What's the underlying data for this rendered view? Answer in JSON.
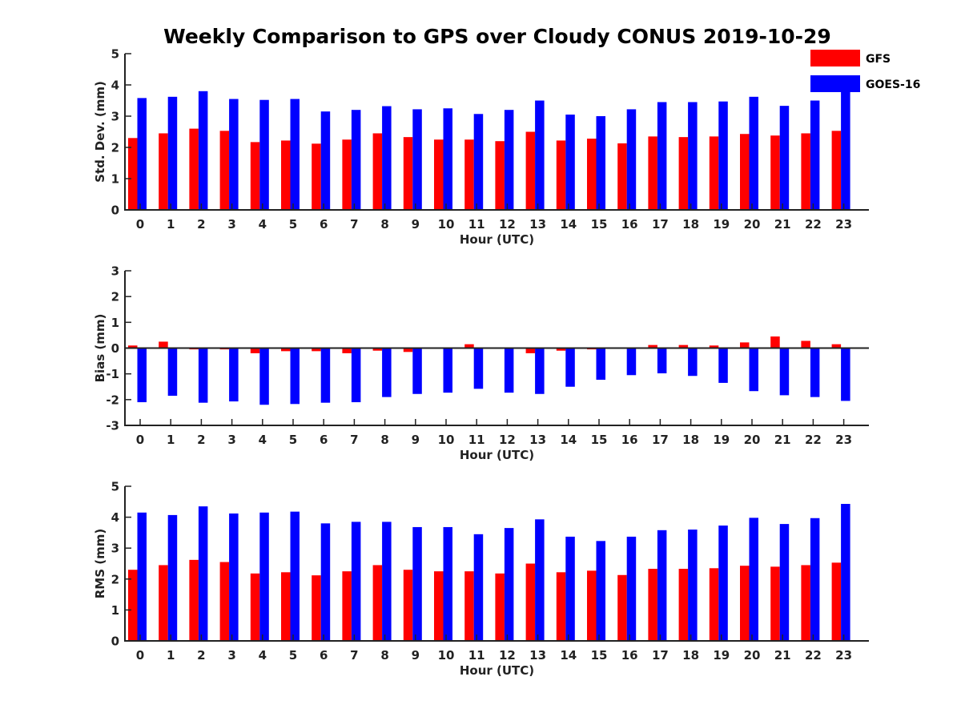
{
  "figure": {
    "title": "Weekly Comparison to GPS over Cloudy CONUS 2019-10-29",
    "colors": {
      "GFS": "#ff0000",
      "GOES-16": "#0000ff"
    },
    "legend": {
      "placement": "top-right",
      "entries": [
        "GFS",
        "GOES-16"
      ]
    }
  },
  "chart_data": [
    {
      "type": "bar",
      "xlabel": "Hour (UTC)",
      "ylabel": "Std. Dev. (mm)",
      "ylim": [
        0,
        5
      ],
      "yticks": [
        0,
        1,
        2,
        3,
        4,
        5
      ],
      "categories": [
        "0",
        "1",
        "2",
        "3",
        "4",
        "5",
        "6",
        "7",
        "8",
        "9",
        "10",
        "11",
        "12",
        "13",
        "14",
        "15",
        "16",
        "17",
        "18",
        "19",
        "20",
        "21",
        "22",
        "23"
      ],
      "series": [
        {
          "name": "GFS",
          "values": [
            2.3,
            2.45,
            2.6,
            2.53,
            2.17,
            2.22,
            2.12,
            2.25,
            2.45,
            2.33,
            2.25,
            2.25,
            2.2,
            2.5,
            2.22,
            2.28,
            2.13,
            2.35,
            2.33,
            2.35,
            2.43,
            2.38,
            2.45,
            2.53
          ]
        },
        {
          "name": "GOES-16",
          "values": [
            3.58,
            3.62,
            3.8,
            3.55,
            3.52,
            3.55,
            3.15,
            3.2,
            3.32,
            3.22,
            3.25,
            3.07,
            3.2,
            3.5,
            3.05,
            3.0,
            3.22,
            3.45,
            3.45,
            3.47,
            3.62,
            3.33,
            3.5,
            3.95
          ]
        }
      ]
    },
    {
      "type": "bar",
      "xlabel": "Hour (UTC)",
      "ylabel": "Bias (mm)",
      "ylim": [
        -3,
        3
      ],
      "yticks": [
        -3,
        -2,
        -1,
        0,
        1,
        2,
        3
      ],
      "zero_line": true,
      "categories": [
        "0",
        "1",
        "2",
        "3",
        "4",
        "5",
        "6",
        "7",
        "8",
        "9",
        "10",
        "11",
        "12",
        "13",
        "14",
        "15",
        "16",
        "17",
        "18",
        "19",
        "20",
        "21",
        "22",
        "23"
      ],
      "series": [
        {
          "name": "GFS",
          "values": [
            0.1,
            0.25,
            -0.05,
            -0.05,
            -0.2,
            -0.12,
            -0.12,
            -0.2,
            -0.1,
            -0.15,
            0.0,
            0.15,
            -0.02,
            -0.2,
            -0.1,
            -0.05,
            0.02,
            0.12,
            0.12,
            0.1,
            0.22,
            0.45,
            0.28,
            0.15
          ]
        },
        {
          "name": "GOES-16",
          "values": [
            -2.1,
            -1.85,
            -2.12,
            -2.07,
            -2.2,
            -2.17,
            -2.12,
            -2.1,
            -1.9,
            -1.78,
            -1.73,
            -1.58,
            -1.73,
            -1.78,
            -1.5,
            -1.23,
            -1.05,
            -0.98,
            -1.08,
            -1.35,
            -1.67,
            -1.83,
            -1.9,
            -2.05
          ]
        }
      ]
    },
    {
      "type": "bar",
      "xlabel": "Hour (UTC)",
      "ylabel": "RMS (mm)",
      "ylim": [
        0,
        5
      ],
      "yticks": [
        0,
        1,
        2,
        3,
        4,
        5
      ],
      "categories": [
        "0",
        "1",
        "2",
        "3",
        "4",
        "5",
        "6",
        "7",
        "8",
        "9",
        "10",
        "11",
        "12",
        "13",
        "14",
        "15",
        "16",
        "17",
        "18",
        "19",
        "20",
        "21",
        "22",
        "23"
      ],
      "series": [
        {
          "name": "GFS",
          "values": [
            2.3,
            2.45,
            2.62,
            2.55,
            2.18,
            2.22,
            2.12,
            2.25,
            2.45,
            2.3,
            2.25,
            2.25,
            2.18,
            2.5,
            2.22,
            2.27,
            2.13,
            2.33,
            2.33,
            2.35,
            2.43,
            2.4,
            2.45,
            2.53
          ]
        },
        {
          "name": "GOES-16",
          "values": [
            4.15,
            4.07,
            4.35,
            4.12,
            4.15,
            4.18,
            3.8,
            3.85,
            3.85,
            3.68,
            3.68,
            3.45,
            3.65,
            3.93,
            3.37,
            3.23,
            3.37,
            3.58,
            3.6,
            3.73,
            3.98,
            3.78,
            3.97,
            4.43
          ]
        }
      ]
    }
  ]
}
